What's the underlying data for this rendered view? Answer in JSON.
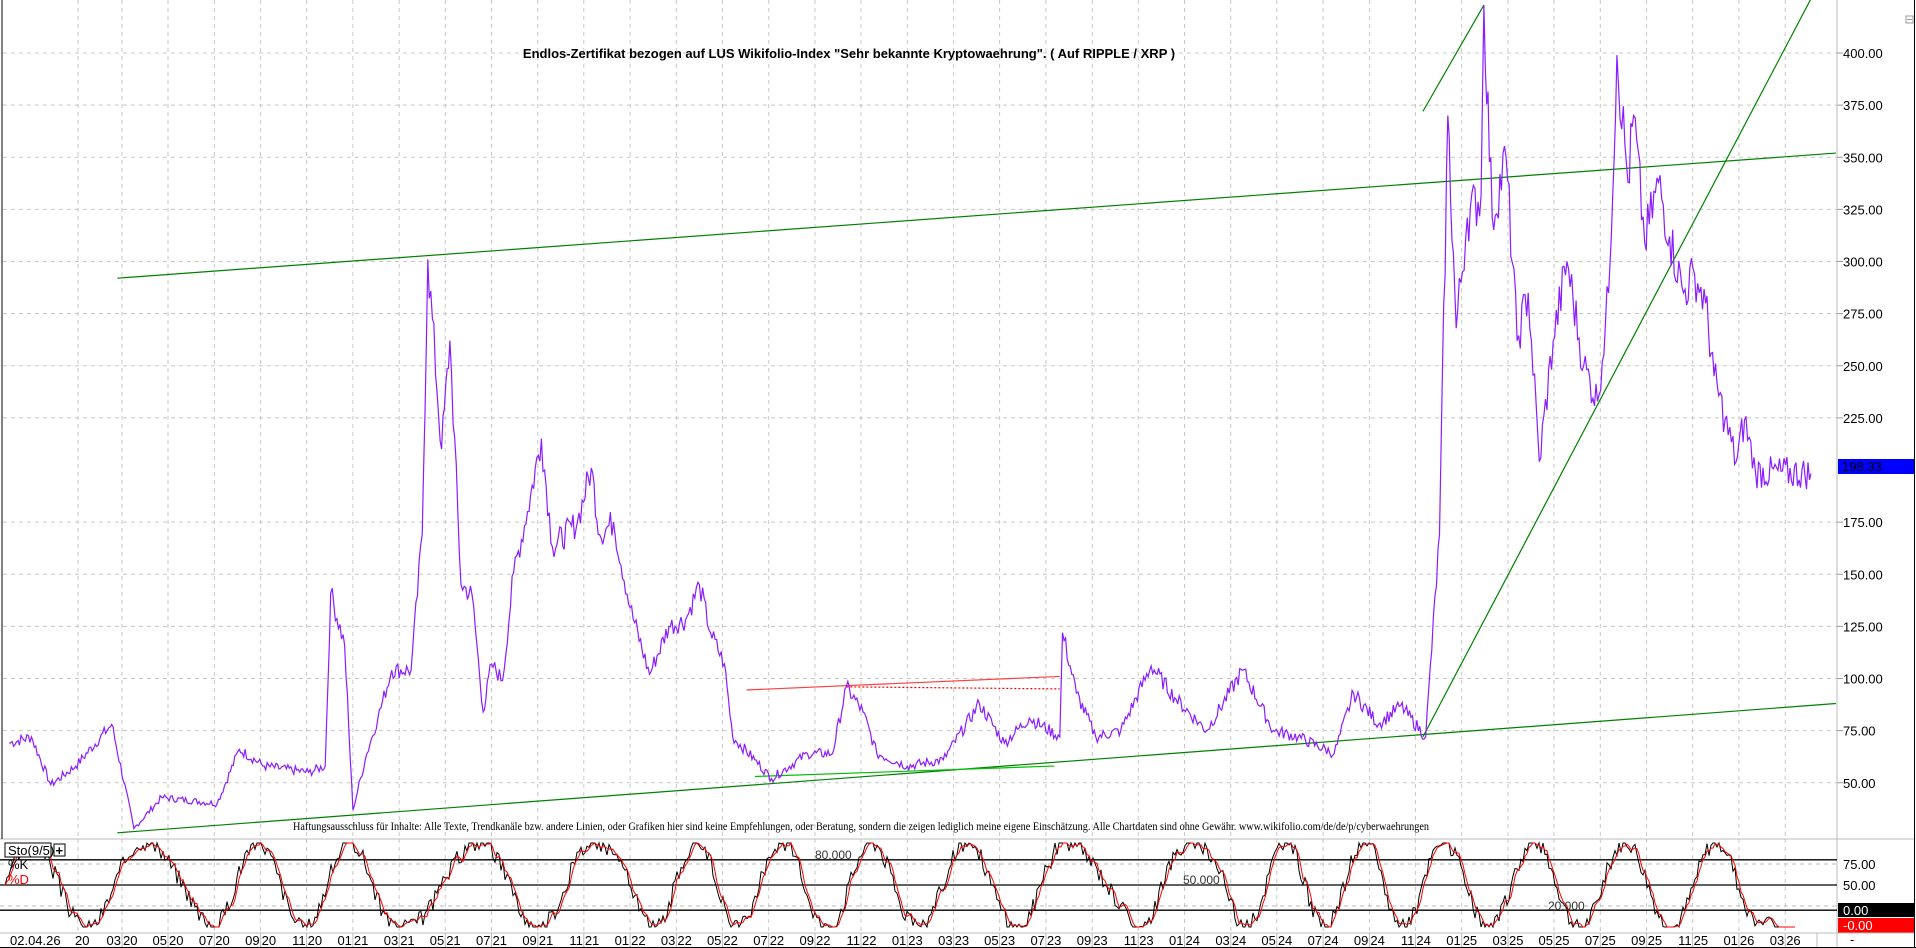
{
  "chart_data": {
    "type": "line",
    "title": "Endlos-Zertifikat bezogen auf LUS Wikifolio-Index \"Sehr bekannte Kryptowaehrung\". ( Auf RIPPLE / XRP )",
    "disclaimer": "Haftungsausschluss für Inhalte: Alle Texte, Trendkanäle bzw. andere Linien, oder Grafiken hier sind keine Empfehlungen, oder Beratung, sondern die zeigen lediglich meine eigene Einschätzung. Alle Chartdaten sind ohne Gewähr.  www.wikifolio.com/de/de/p/cyberwaehrungen",
    "xlabel": "",
    "ylabel": "",
    "ylim": [
      25,
      425
    ],
    "grid": true,
    "y_ticks": [
      "400.00",
      "375.00",
      "350.00",
      "325.00",
      "300.00",
      "275.00",
      "250.00",
      "225.00",
      "175.00",
      "150.00",
      "125.00",
      "100.00",
      "75.00",
      "50.00"
    ],
    "y_tick_values": [
      400,
      375,
      350,
      325,
      300,
      275,
      250,
      225,
      175,
      150,
      125,
      100,
      75,
      50
    ],
    "last_price": "198.33",
    "x_first_label": "02.04.26",
    "x_partial_label": "20",
    "x_ticks": [
      {
        "m": "03",
        "y": "20",
        "t": 2020.167
      },
      {
        "m": "05",
        "y": "20",
        "t": 2020.333
      },
      {
        "m": "07",
        "y": "20",
        "t": 2020.5
      },
      {
        "m": "09",
        "y": "20",
        "t": 2020.667
      },
      {
        "m": "11",
        "y": "20",
        "t": 2020.833
      },
      {
        "m": "01",
        "y": "21",
        "t": 2021.0
      },
      {
        "m": "03",
        "y": "21",
        "t": 2021.167
      },
      {
        "m": "05",
        "y": "21",
        "t": 2021.333
      },
      {
        "m": "07",
        "y": "21",
        "t": 2021.5
      },
      {
        "m": "09",
        "y": "21",
        "t": 2021.667
      },
      {
        "m": "11",
        "y": "21",
        "t": 2021.833
      },
      {
        "m": "01",
        "y": "22",
        "t": 2022.0
      },
      {
        "m": "03",
        "y": "22",
        "t": 2022.167
      },
      {
        "m": "05",
        "y": "22",
        "t": 2022.333
      },
      {
        "m": "07",
        "y": "22",
        "t": 2022.5
      },
      {
        "m": "09",
        "y": "22",
        "t": 2022.667
      },
      {
        "m": "11",
        "y": "22",
        "t": 2022.833
      },
      {
        "m": "01",
        "y": "23",
        "t": 2023.0
      },
      {
        "m": "03",
        "y": "23",
        "t": 2023.167
      },
      {
        "m": "05",
        "y": "23",
        "t": 2023.333
      },
      {
        "m": "07",
        "y": "23",
        "t": 2023.5
      },
      {
        "m": "09",
        "y": "23",
        "t": 2023.667
      },
      {
        "m": "11",
        "y": "23",
        "t": 2023.833
      },
      {
        "m": "01",
        "y": "24",
        "t": 2024.0
      },
      {
        "m": "03",
        "y": "24",
        "t": 2024.167
      },
      {
        "m": "05",
        "y": "24",
        "t": 2024.333
      },
      {
        "m": "07",
        "y": "24",
        "t": 2024.5
      },
      {
        "m": "09",
        "y": "24",
        "t": 2024.667
      },
      {
        "m": "11",
        "y": "24",
        "t": 2024.833
      },
      {
        "m": "01",
        "y": "25",
        "t": 2025.0
      },
      {
        "m": "03",
        "y": "25",
        "t": 2025.167
      },
      {
        "m": "05",
        "y": "25",
        "t": 2025.333
      },
      {
        "m": "07",
        "y": "25",
        "t": 2025.5
      },
      {
        "m": "09",
        "y": "25",
        "t": 2025.667
      },
      {
        "m": "11",
        "y": "25",
        "t": 2025.833
      },
      {
        "m": "01",
        "y": "26",
        "t": 2026.0
      },
      {
        "m": "03",
        "y": "26",
        "t": 2026.167
      }
    ],
    "x_end_label": "-",
    "series": [
      {
        "name": "Price",
        "color": "#8b1cff",
        "points": [
          [
            2019.76,
            69
          ],
          [
            2019.84,
            72
          ],
          [
            2019.91,
            49
          ],
          [
            2020.0,
            58
          ],
          [
            2020.13,
            78
          ],
          [
            2020.21,
            28
          ],
          [
            2020.31,
            43
          ],
          [
            2020.51,
            40
          ],
          [
            2020.59,
            66
          ],
          [
            2020.68,
            58
          ],
          [
            2020.84,
            55
          ],
          [
            2020.9,
            58
          ],
          [
            2020.92,
            141
          ],
          [
            2020.97,
            116
          ],
          [
            2021.0,
            37
          ],
          [
            2021.05,
            64
          ],
          [
            2021.09,
            81
          ],
          [
            2021.14,
            104
          ],
          [
            2021.21,
            104
          ],
          [
            2021.25,
            169
          ],
          [
            2021.27,
            301
          ],
          [
            2021.32,
            210
          ],
          [
            2021.35,
            262
          ],
          [
            2021.39,
            145
          ],
          [
            2021.43,
            140
          ],
          [
            2021.47,
            84
          ],
          [
            2021.5,
            107
          ],
          [
            2021.54,
            99
          ],
          [
            2021.58,
            151
          ],
          [
            2021.63,
            180
          ],
          [
            2021.68,
            215
          ],
          [
            2021.72,
            163
          ],
          [
            2021.81,
            175
          ],
          [
            2021.86,
            201
          ],
          [
            2021.89,
            169
          ],
          [
            2021.94,
            175
          ],
          [
            2022.0,
            134
          ],
          [
            2022.07,
            102
          ],
          [
            2022.14,
            125
          ],
          [
            2022.2,
            128
          ],
          [
            2022.25,
            145
          ],
          [
            2022.29,
            122
          ],
          [
            2022.34,
            107
          ],
          [
            2022.37,
            72
          ],
          [
            2022.45,
            61
          ],
          [
            2022.51,
            52
          ],
          [
            2022.64,
            64
          ],
          [
            2022.73,
            64
          ],
          [
            2022.78,
            96
          ],
          [
            2022.84,
            84
          ],
          [
            2022.89,
            64
          ],
          [
            2023.0,
            58
          ],
          [
            2023.13,
            61
          ],
          [
            2023.26,
            88
          ],
          [
            2023.35,
            69
          ],
          [
            2023.44,
            81
          ],
          [
            2023.55,
            72
          ],
          [
            2023.56,
            122
          ],
          [
            2023.61,
            93
          ],
          [
            2023.68,
            72
          ],
          [
            2023.77,
            75
          ],
          [
            2023.88,
            106
          ],
          [
            2023.97,
            90
          ],
          [
            2024.08,
            75
          ],
          [
            2024.21,
            104
          ],
          [
            2024.32,
            75
          ],
          [
            2024.41,
            72
          ],
          [
            2024.54,
            64
          ],
          [
            2024.61,
            93
          ],
          [
            2024.7,
            78
          ],
          [
            2024.78,
            87
          ],
          [
            2024.87,
            72
          ],
          [
            2024.92,
            169
          ],
          [
            2024.95,
            370
          ],
          [
            2024.98,
            268
          ],
          [
            2025.02,
            321
          ],
          [
            2025.07,
            332
          ],
          [
            2025.08,
            423
          ],
          [
            2025.11,
            321
          ],
          [
            2025.16,
            350
          ],
          [
            2025.2,
            262
          ],
          [
            2025.24,
            285
          ],
          [
            2025.28,
            204
          ],
          [
            2025.33,
            262
          ],
          [
            2025.38,
            300
          ],
          [
            2025.44,
            250
          ],
          [
            2025.49,
            233
          ],
          [
            2025.53,
            285
          ],
          [
            2025.56,
            399
          ],
          [
            2025.6,
            338
          ],
          [
            2025.62,
            370
          ],
          [
            2025.66,
            309
          ],
          [
            2025.71,
            338
          ],
          [
            2025.75,
            312
          ],
          [
            2025.8,
            285
          ],
          [
            2025.84,
            294
          ],
          [
            2025.88,
            280
          ],
          [
            2025.91,
            245
          ],
          [
            2025.95,
            224
          ],
          [
            2025.99,
            204
          ],
          [
            2026.02,
            224
          ],
          [
            2026.06,
            199
          ],
          [
            2026.26,
            198.33
          ]
        ]
      }
    ],
    "trend_lines": [
      {
        "name": "upper-channel",
        "color": "#008000",
        "from": [
          2020.15,
          292
        ],
        "to": [
          2026.35,
          352
        ]
      },
      {
        "name": "lower-channel",
        "color": "#008000",
        "from": [
          2020.15,
          26
        ],
        "to": [
          2026.35,
          88
        ]
      },
      {
        "name": "steep-support",
        "color": "#008000",
        "from": [
          2024.86,
          72
        ],
        "to": [
          2026.26,
          426
        ]
      },
      {
        "name": "breakout-line",
        "color": "#008000",
        "from": [
          2024.86,
          372
        ],
        "to": [
          2025.08,
          423
        ]
      },
      {
        "name": "base-support",
        "color": "#00c000",
        "from": [
          2022.45,
          53
        ],
        "to": [
          2023.53,
          58
        ]
      },
      {
        "name": "resistance",
        "color": "#ff4040",
        "from": [
          2022.42,
          94.5
        ],
        "to": [
          2023.55,
          101
        ]
      },
      {
        "name": "resistance-dotted",
        "color": "#ff0000",
        "dashed": true,
        "from": [
          2022.78,
          96
        ],
        "to": [
          2023.55,
          95
        ]
      }
    ],
    "indicator": {
      "label": "Sto(9/5)",
      "plus_label": "+",
      "k_label": "%K",
      "d_label": "%D",
      "k_color": "#000000",
      "d_color": "#ff0000",
      "levels": [
        80,
        50,
        20
      ],
      "level_labels": [
        "80.000",
        "50.000",
        "20.000"
      ],
      "axis_ticks": [
        "75.00",
        "50.00"
      ],
      "k_value": "0.00",
      "d_value": "-0.00"
    }
  }
}
